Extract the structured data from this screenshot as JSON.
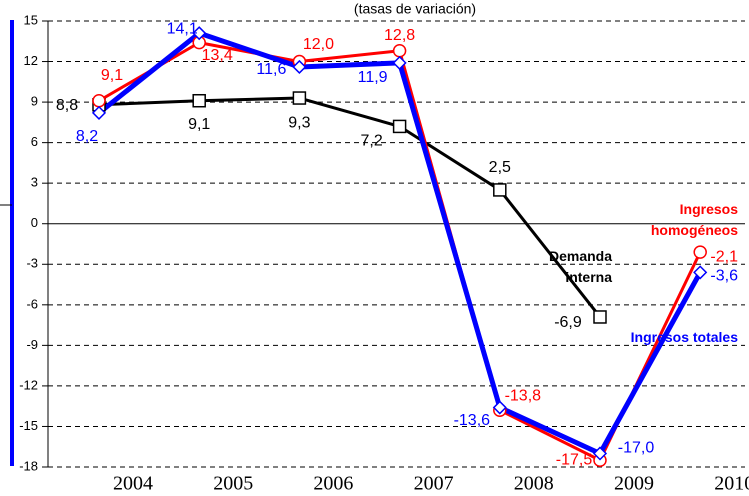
{
  "chart_data": {
    "type": "line",
    "subtitle": "(tasas de variación)",
    "categories": [
      "2004",
      "2005",
      "2006",
      "2007",
      "2008",
      "2009",
      "2010"
    ],
    "series": [
      {
        "name": "Demanda interna",
        "color": "#000000",
        "marker": "square",
        "values": [
          8.8,
          9.1,
          9.3,
          7.2,
          2.5,
          -6.9,
          null
        ],
        "value_labels": [
          "8,8",
          "9,1",
          "9,3",
          "7,2",
          "2,5",
          "-6,9",
          null
        ]
      },
      {
        "name": "Ingresos homogéneos",
        "color": "#ff0000",
        "marker": "circle",
        "values": [
          9.1,
          13.4,
          12.0,
          12.8,
          -13.8,
          -17.5,
          -2.1
        ],
        "value_labels": [
          "9,1",
          "13,4",
          "12,0",
          "12,8",
          "-13,8",
          "-17,5",
          "-2,1"
        ]
      },
      {
        "name": "Ingresos totales",
        "color": "#0000ff",
        "marker": "diamond",
        "values": [
          8.2,
          14.1,
          11.6,
          11.9,
          -13.6,
          -17.0,
          -3.6
        ],
        "value_labels": [
          "8,2",
          "14,1",
          "11,6",
          "11,9",
          "-13,6",
          "-17,0",
          "-3,6"
        ]
      }
    ],
    "ylim": [
      -18,
      15
    ],
    "yticks": [
      15,
      12,
      9,
      6,
      3,
      0,
      -3,
      -6,
      -9,
      -12,
      -15,
      -18
    ],
    "grid": true
  }
}
